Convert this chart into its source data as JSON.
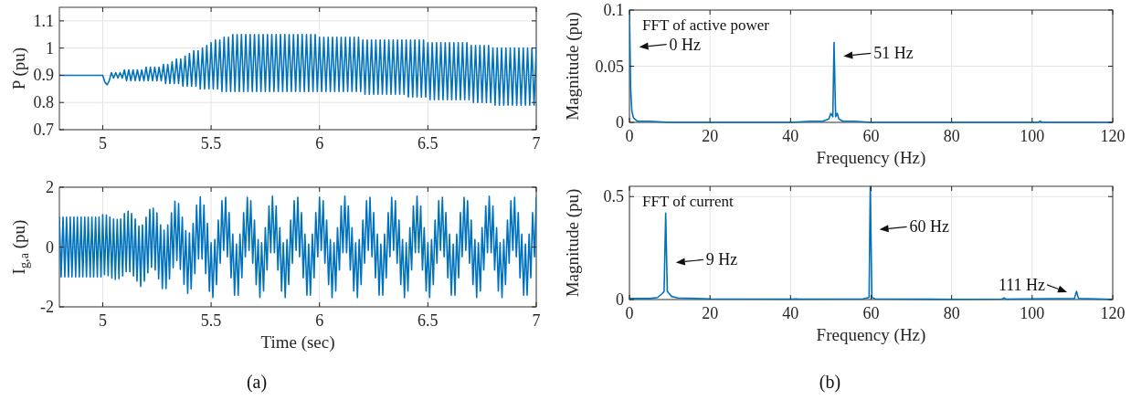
{
  "chart_data": [
    {
      "type": "line",
      "xlim": [
        4.8,
        7
      ],
      "xticks": [
        5,
        5.5,
        6,
        6.5,
        7
      ],
      "ylim": [
        0.7,
        1.15
      ],
      "yticks": [
        0.7,
        0.8,
        0.9,
        1,
        1.1
      ],
      "ylabel": "P (pu)",
      "grid": true,
      "series": [
        {
          "color": "#0072bd",
          "x": [
            4.8,
            5,
            5.01,
            5.02,
            5.03,
            5.04,
            5.05,
            5.06,
            5.07,
            5.08,
            5.09,
            5.1,
            5.11,
            5.12,
            5.13,
            5.14,
            5.15,
            5.16,
            5.17,
            5.18,
            5.19,
            5.2,
            5.21,
            5.22,
            5.23,
            5.24,
            5.25,
            5.26,
            5.27,
            5.28,
            5.29,
            5.3,
            5.31,
            5.32,
            5.33,
            5.34,
            5.35,
            5.36,
            5.37,
            5.38,
            5.39,
            5.4,
            5.41,
            5.42,
            5.43,
            5.44,
            5.45,
            5.46,
            5.47,
            5.48,
            5.49,
            5.5,
            5.51,
            5.52,
            5.53,
            5.54,
            5.55,
            5.56,
            5.57,
            5.58,
            5.59,
            5.6,
            5.61,
            5.62,
            5.63,
            5.64,
            5.65,
            5.66,
            5.67,
            5.68,
            5.69,
            5.7,
            5.71,
            5.72,
            5.73,
            5.74,
            5.75,
            5.76,
            5.77,
            5.78,
            5.79,
            5.8,
            5.81,
            5.82,
            5.83,
            5.84,
            5.85,
            5.86,
            5.87,
            5.88,
            5.89,
            5.9,
            5.91,
            5.92,
            5.93,
            5.94,
            5.95,
            5.96,
            5.97,
            5.98,
            5.99,
            6,
            6.01,
            6.02,
            6.03,
            6.04,
            6.05,
            6.06,
            6.07,
            6.08,
            6.09,
            6.1,
            6.11,
            6.12,
            6.13,
            6.14,
            6.15,
            6.16,
            6.17,
            6.18,
            6.19,
            6.2,
            6.21,
            6.22,
            6.23,
            6.24,
            6.25,
            6.26,
            6.27,
            6.28,
            6.29,
            6.3,
            6.31,
            6.32,
            6.33,
            6.34,
            6.35,
            6.36,
            6.37,
            6.38,
            6.39,
            6.4,
            6.41,
            6.42,
            6.43,
            6.44,
            6.45,
            6.46,
            6.47,
            6.48,
            6.49,
            6.5,
            6.51,
            6.52,
            6.53,
            6.54,
            6.55,
            6.56,
            6.57,
            6.58,
            6.59,
            6.6,
            6.61,
            6.62,
            6.63,
            6.64,
            6.65,
            6.66,
            6.67,
            6.68,
            6.69,
            6.7,
            6.71,
            6.72,
            6.73,
            6.74,
            6.75,
            6.76,
            6.77,
            6.78,
            6.79,
            6.8,
            6.81,
            6.82,
            6.83,
            6.84,
            6.85,
            6.86,
            6.87,
            6.88,
            6.89,
            6.9,
            6.91,
            6.92,
            6.93,
            6.94,
            6.95,
            6.96,
            6.97,
            6.98,
            6.99,
            7
          ],
          "values": [
            0.9,
            0.9,
            0.875,
            0.865,
            0.88,
            0.91,
            0.89,
            0.91,
            0.89,
            0.91,
            0.89,
            0.92,
            0.88,
            0.92,
            0.88,
            0.92,
            0.88,
            0.92,
            0.88,
            0.92,
            0.88,
            0.93,
            0.88,
            0.93,
            0.88,
            0.93,
            0.88,
            0.93,
            0.88,
            0.94,
            0.87,
            0.94,
            0.87,
            0.95,
            0.87,
            0.96,
            0.87,
            0.96,
            0.86,
            0.97,
            0.86,
            0.98,
            0.86,
            0.99,
            0.86,
            0.99,
            0.85,
            1,
            0.85,
            1.01,
            0.85,
            1.02,
            0.85,
            1.03,
            0.85,
            1.03,
            0.84,
            1.04,
            0.84,
            1.04,
            0.84,
            1.05,
            0.84,
            1.05,
            0.84,
            1.05,
            0.84,
            1.05,
            0.84,
            1.05,
            0.84,
            1.05,
            0.84,
            1.05,
            0.84,
            1.05,
            0.84,
            1.05,
            0.84,
            1.05,
            0.84,
            1.05,
            0.84,
            1.05,
            0.84,
            1.05,
            0.84,
            1.05,
            0.84,
            1.05,
            0.84,
            1.05,
            0.84,
            1.05,
            0.84,
            1.05,
            0.84,
            1.05,
            0.84,
            1.05,
            0.84,
            1.04,
            0.84,
            1.04,
            0.84,
            1.04,
            0.84,
            1.04,
            0.84,
            1.04,
            0.84,
            1.04,
            0.84,
            1.04,
            0.84,
            1.04,
            0.84,
            1.04,
            0.84,
            1.04,
            0.84,
            1.03,
            0.83,
            1.03,
            0.83,
            1.03,
            0.83,
            1.03,
            0.83,
            1.03,
            0.83,
            1.03,
            0.83,
            1.03,
            0.83,
            1.03,
            0.83,
            1.03,
            0.83,
            1.03,
            0.83,
            1.03,
            0.82,
            1.03,
            0.82,
            1.03,
            0.82,
            1.03,
            0.82,
            1.03,
            0.82,
            1.02,
            0.81,
            1.02,
            0.81,
            1.02,
            0.81,
            1.02,
            0.81,
            1.02,
            0.81,
            1.02,
            0.81,
            1.02,
            0.81,
            1.02,
            0.81,
            1.02,
            0.81,
            1.02,
            0.81,
            1.01,
            0.8,
            1.01,
            0.8,
            1.01,
            0.8,
            1.01,
            0.8,
            1.01,
            0.8,
            1,
            0.79,
            1,
            0.79,
            1,
            0.79,
            1,
            0.79,
            1,
            0.79,
            1,
            0.79,
            1,
            0.79,
            1,
            0.79,
            1,
            0.79,
            1,
            0.79,
            1
          ]
        }
      ]
    },
    {
      "type": "line",
      "xlim": [
        4.8,
        7
      ],
      "xticks": [
        5,
        5.5,
        6,
        6.5,
        7
      ],
      "ylim": [
        -2,
        2
      ],
      "yticks": [
        -2,
        0,
        2
      ],
      "xlabel": "Time (sec)",
      "ylabel": "I$_{g,a}$ (pu)",
      "grid": true,
      "annotations": [
        "(a)"
      ],
      "series": [
        {
          "color": "#0072bd",
          "x": [
            4.8,
            4.808,
            4.817,
            4.825,
            4.833,
            4.842,
            4.85,
            4.858,
            4.867,
            4.875,
            4.883,
            4.892,
            4.9,
            4.908,
            4.917,
            4.925,
            4.933,
            4.942,
            4.95,
            4.958,
            4.967,
            4.975,
            4.983,
            4.992,
            5,
            5.008,
            5.017,
            5.025,
            5.033,
            5.042,
            5.05,
            5.058,
            5.067,
            5.075,
            5.083,
            5.092,
            5.1,
            5.108,
            5.117,
            5.125,
            5.133,
            5.142,
            5.15,
            5.158,
            5.167,
            5.175,
            5.183,
            5.192,
            5.2,
            5.208,
            5.217,
            5.225,
            5.233,
            5.242,
            5.25,
            5.258,
            5.267,
            5.275,
            5.283,
            5.292,
            5.3,
            5.308,
            5.317,
            5.325,
            5.333,
            5.342,
            5.35,
            5.358,
            5.367,
            5.375,
            5.383,
            5.392,
            5.4,
            5.408,
            5.417,
            5.425,
            5.433,
            5.442,
            5.45,
            5.458,
            5.467,
            5.475,
            5.483,
            5.492,
            5.5,
            5.508,
            5.517,
            5.525,
            5.533,
            5.542,
            5.55,
            5.558,
            5.567,
            5.575,
            5.583,
            5.592,
            5.6,
            5.608,
            5.617,
            5.625,
            5.633,
            5.642,
            5.65,
            5.658,
            5.667,
            5.675,
            5.683,
            5.692,
            5.7,
            5.708,
            5.717,
            5.725,
            5.733,
            5.742,
            5.75,
            5.758,
            5.767,
            5.775,
            5.783,
            5.792,
            5.8,
            5.808,
            5.817,
            5.825,
            5.833,
            5.842,
            5.85,
            5.858,
            5.867,
            5.875,
            5.883,
            5.892,
            5.9,
            5.908,
            5.917,
            5.925,
            5.933,
            5.942,
            5.95,
            5.958,
            5.967,
            5.975,
            5.983,
            5.992,
            6,
            6.008,
            6.017,
            6.025,
            6.033,
            6.042,
            6.05,
            6.058,
            6.067,
            6.075,
            6.083,
            6.092,
            6.1,
            6.108,
            6.117,
            6.125,
            6.133,
            6.142,
            6.15,
            6.158,
            6.167,
            6.175,
            6.183,
            6.192,
            6.2,
            6.208,
            6.217,
            6.225,
            6.233,
            6.242,
            6.25,
            6.258,
            6.267,
            6.275,
            6.283,
            6.292,
            6.3,
            6.308,
            6.317,
            6.325,
            6.333,
            6.342,
            6.35,
            6.358,
            6.367,
            6.375,
            6.383,
            6.392,
            6.4,
            6.408,
            6.417,
            6.425,
            6.433,
            6.442,
            6.45,
            6.458,
            6.467,
            6.475,
            6.483,
            6.492,
            6.5,
            6.508,
            6.517,
            6.525,
            6.533,
            6.542,
            6.55,
            6.558,
            6.567,
            6.575,
            6.583,
            6.592,
            6.6,
            6.608,
            6.617,
            6.625,
            6.633,
            6.642,
            6.65,
            6.658,
            6.667,
            6.675,
            6.683,
            6.692,
            6.7,
            6.708,
            6.717,
            6.725,
            6.733,
            6.742,
            6.75,
            6.758,
            6.767,
            6.775,
            6.783,
            6.792,
            6.8,
            6.808,
            6.817,
            6.825,
            6.833,
            6.842,
            6.85,
            6.858,
            6.867,
            6.875,
            6.883,
            6.892,
            6.9,
            6.908,
            6.917,
            6.925,
            6.933,
            6.942,
            6.95,
            6.958,
            6.967,
            6.975,
            6.983,
            6.992,
            7
          ],
          "values": [
            1,
            -1,
            1,
            -1,
            1,
            -1,
            1,
            -1,
            1,
            -1,
            1,
            -1,
            1,
            -1,
            1,
            -1,
            1,
            -1,
            1,
            -1,
            1,
            -1,
            1,
            -1,
            1.08,
            -0.92,
            1.07,
            -0.96,
            1,
            -1.04,
            0.94,
            -1.08,
            0.92,
            -1.06,
            0.94,
            -0.97,
            1.12,
            -0.82,
            1.2,
            -0.82,
            1.12,
            -0.97,
            0.94,
            -1.14,
            0.7,
            -1.32,
            0.74,
            -1.14,
            1,
            -0.86,
            1.26,
            -0.68,
            1.3,
            -0.77,
            1.14,
            -1.07,
            0.74,
            -1.39,
            0.56,
            -1.39,
            0.74,
            -1.07,
            1.14,
            -0.69,
            1.53,
            -0.45,
            1.46,
            -0.75,
            1,
            -1.25,
            0.55,
            -1.55,
            0.47,
            -1.4,
            0.79,
            -0.89,
            1.4,
            -0.4,
            1.68,
            -0.4,
            1.4,
            -0.89,
            0.79,
            -1.48,
            0.14,
            -1.69,
            0.25,
            -1.26,
            0.9,
            -0.54,
            1.55,
            -0.11,
            1.66,
            -0.33,
            1.15,
            -1.03,
            0.43,
            -1.61,
            0.1,
            -1.61,
            0.43,
            -1.03,
            1.15,
            -0.33,
            1.66,
            -0.11,
            1.55,
            -0.54,
            0.9,
            -1.26,
            0.25,
            -1.69,
            0.14,
            -1.47,
            0.65,
            -0.77,
            1.37,
            -0.19,
            1.7,
            -0.19,
            1.37,
            -0.77,
            0.65,
            -1.47,
            0.14,
            -1.69,
            0.25,
            -1.26,
            0.9,
            -0.54,
            1.55,
            -0.11,
            1.66,
            -0.33,
            1.15,
            -1.03,
            0.43,
            -1.61,
            0.1,
            -1.61,
            0.43,
            -1.03,
            1.15,
            -0.33,
            1.66,
            -0.11,
            1.55,
            -0.54,
            0.9,
            -1.26,
            0.25,
            -1.69,
            0.14,
            -1.47,
            0.65,
            -0.77,
            1.37,
            -0.19,
            1.7,
            -0.19,
            1.37,
            -0.77,
            0.65,
            -1.47,
            0.14,
            -1.69,
            0.25,
            -1.26,
            0.9,
            -0.54,
            1.55,
            -0.11,
            1.66,
            -0.33,
            1.15,
            -1.03,
            0.43,
            -1.61,
            0.1,
            -1.61,
            0.43,
            -1.03,
            1.15,
            -0.33,
            1.66,
            -0.11,
            1.55,
            -0.54,
            0.9,
            -1.26,
            0.25,
            -1.69,
            0.14,
            -1.47,
            0.65,
            -0.77,
            1.37,
            -0.19,
            1.7,
            -0.19,
            1.37,
            -0.77,
            0.65,
            -1.47,
            0.14,
            -1.69,
            0.25,
            -1.26,
            0.9,
            -0.54,
            1.55,
            -0.11,
            1.66,
            -0.33,
            1.15,
            -1.03,
            0.43,
            -1.61,
            0.1,
            -1.61,
            0.43,
            -1.03,
            1.15,
            -0.33,
            1.66,
            -0.11,
            1.55,
            -0.54,
            0.9,
            -1.26,
            0.25,
            -1.69,
            0.14,
            -1.47,
            0.65,
            -0.77,
            1.37,
            -0.19,
            1.7,
            -0.19,
            1.37,
            -0.77,
            0.65,
            -1.47,
            0.14,
            -1.69,
            0.25,
            -1.26,
            0.9,
            -0.54,
            1.55,
            -0.11,
            1.66,
            -0.33,
            1.15,
            -1.03,
            0.43,
            -1.61,
            0.1,
            -1.61,
            0.43,
            -1.03,
            1.15,
            -0.33,
            1.66
          ]
        }
      ]
    },
    {
      "type": "line",
      "xlim": [
        0,
        120
      ],
      "xticks": [
        0,
        20,
        40,
        60,
        80,
        100,
        120
      ],
      "ylim": [
        0,
        0.1
      ],
      "yticks": [
        0,
        0.05,
        0.1
      ],
      "xlabel": "Frequency (Hz)",
      "ylabel": "Magnitude (pu)",
      "grid": true,
      "annotations": [
        "FFT of active power",
        {
          "text": "0 Hz",
          "x": 0.14,
          "y": 0.067
        },
        {
          "text": "51 Hz",
          "x": 50.87,
          "y": 0.059
        }
      ],
      "series": [
        {
          "color": "#0072bd",
          "x": [
            0,
            0.3,
            0.6,
            1,
            2,
            5,
            10,
            40,
            45,
            48,
            49.5,
            50,
            50.5,
            50.8,
            51.2,
            51.6,
            52,
            53,
            56,
            60,
            80,
            101.5,
            102,
            102.5,
            120
          ],
          "values": [
            0.1,
            0.03,
            0.01,
            0.004,
            0.001,
            0.001,
            0,
            0,
            0.001,
            0.001,
            0.003,
            0.008,
            0.005,
            0.071,
            0.005,
            0.008,
            0.003,
            0.001,
            0.001,
            0,
            0,
            0,
            0.001,
            0,
            0
          ]
        }
      ]
    },
    {
      "type": "line",
      "xlim": [
        0,
        120
      ],
      "xticks": [
        0,
        20,
        40,
        60,
        80,
        100,
        120
      ],
      "ylim": [
        0,
        0.55
      ],
      "yticks": [
        0,
        0.5
      ],
      "xlabel": "Frequency (Hz)",
      "ylabel": "Magnitude (pu)",
      "grid": true,
      "annotations": [
        "FFT of current",
        {
          "text": "9 Hz",
          "x": 9.25,
          "y": 0.18
        },
        {
          "text": "60 Hz",
          "x": 59.8,
          "y": 0.34
        },
        {
          "text": "111 Hz",
          "x": 110.94,
          "y": 0.036
        },
        "(b)"
      ],
      "series": [
        {
          "color": "#0072bd",
          "x": [
            0,
            5,
            7,
            8.2,
            8.6,
            9,
            9.4,
            9.8,
            10.5,
            12,
            20,
            40,
            41.5,
            42,
            58,
            59.5,
            59.8,
            60.2,
            61,
            80,
            92.5,
            93,
            93.5,
            110.5,
            111,
            111.5,
            120
          ],
          "values": [
            0.005,
            0.005,
            0.01,
            0.03,
            0.04,
            0.42,
            0.04,
            0.03,
            0.015,
            0.008,
            0.003,
            0.002,
            0.003,
            0.002,
            0.003,
            0.01,
            0.55,
            0.01,
            0.003,
            0.001,
            0.002,
            0.008,
            0.002,
            0.005,
            0.04,
            0.005,
            0.001
          ]
        }
      ]
    }
  ]
}
